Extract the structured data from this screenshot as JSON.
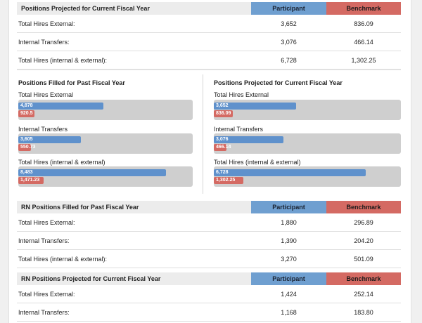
{
  "table1": {
    "title": "Positions Projected for Current Fiscal Year",
    "participant_label": "Participant",
    "benchmark_label": "Benchmark",
    "rows": [
      {
        "label": "Total Hires External:",
        "participant": "3,652",
        "benchmark": "836.09"
      },
      {
        "label": "Internal Transfers:",
        "participant": "3,076",
        "benchmark": "466.14"
      },
      {
        "label": "Total Hires (internal & external):",
        "participant": "6,728",
        "benchmark": "1,302.25"
      }
    ]
  },
  "chart_data": [
    {
      "type": "bar",
      "title": "Positions Filled for Past Fiscal Year",
      "categories": [
        "Total Hires External",
        "Internal Transfers",
        "Total Hires (internal & external)"
      ],
      "series": [
        {
          "name": "Participant",
          "values": [
            4878,
            3605,
            8483
          ],
          "labels": [
            "4,878",
            "3,605",
            "8,483"
          ]
        },
        {
          "name": "Benchmark",
          "values": [
            920.5,
            550.73,
            1471.23
          ],
          "labels": [
            "920.5",
            "550.73",
            "1,471.23"
          ]
        }
      ],
      "xlim": [
        0,
        10000
      ]
    },
    {
      "type": "bar",
      "title": "Positions Projected for Current Fiscal Year",
      "categories": [
        "Total Hires External",
        "Internal Transfers",
        "Total Hires (internal & external)"
      ],
      "series": [
        {
          "name": "Participant",
          "values": [
            3652,
            3076,
            6728
          ],
          "labels": [
            "3,652",
            "3,076",
            "6,728"
          ]
        },
        {
          "name": "Benchmark",
          "values": [
            836.09,
            466.14,
            1302.25
          ],
          "labels": [
            "836.09",
            "466.14",
            "1,302.25"
          ]
        }
      ],
      "xlim": [
        0,
        8300
      ]
    }
  ],
  "table2": {
    "title": "RN Positions Filled for Past Fiscal Year",
    "participant_label": "Participant",
    "benchmark_label": "Benchmark",
    "rows": [
      {
        "label": "Total Hires External:",
        "participant": "1,880",
        "benchmark": "296.89"
      },
      {
        "label": "Internal Transfers:",
        "participant": "1,390",
        "benchmark": "204.20"
      },
      {
        "label": "Total Hires (internal & external):",
        "participant": "3,270",
        "benchmark": "501.09"
      }
    ]
  },
  "table3": {
    "title": "RN Positions Projected for Current Fiscal Year",
    "participant_label": "Participant",
    "benchmark_label": "Benchmark",
    "rows": [
      {
        "label": "Total Hires External:",
        "participant": "1,424",
        "benchmark": "252.14"
      },
      {
        "label": "Internal Transfers:",
        "participant": "1,168",
        "benchmark": "183.80"
      }
    ]
  },
  "colors": {
    "participant": "#5f91cc",
    "benchmark": "#d46a63",
    "track": "#cfcfcf"
  }
}
